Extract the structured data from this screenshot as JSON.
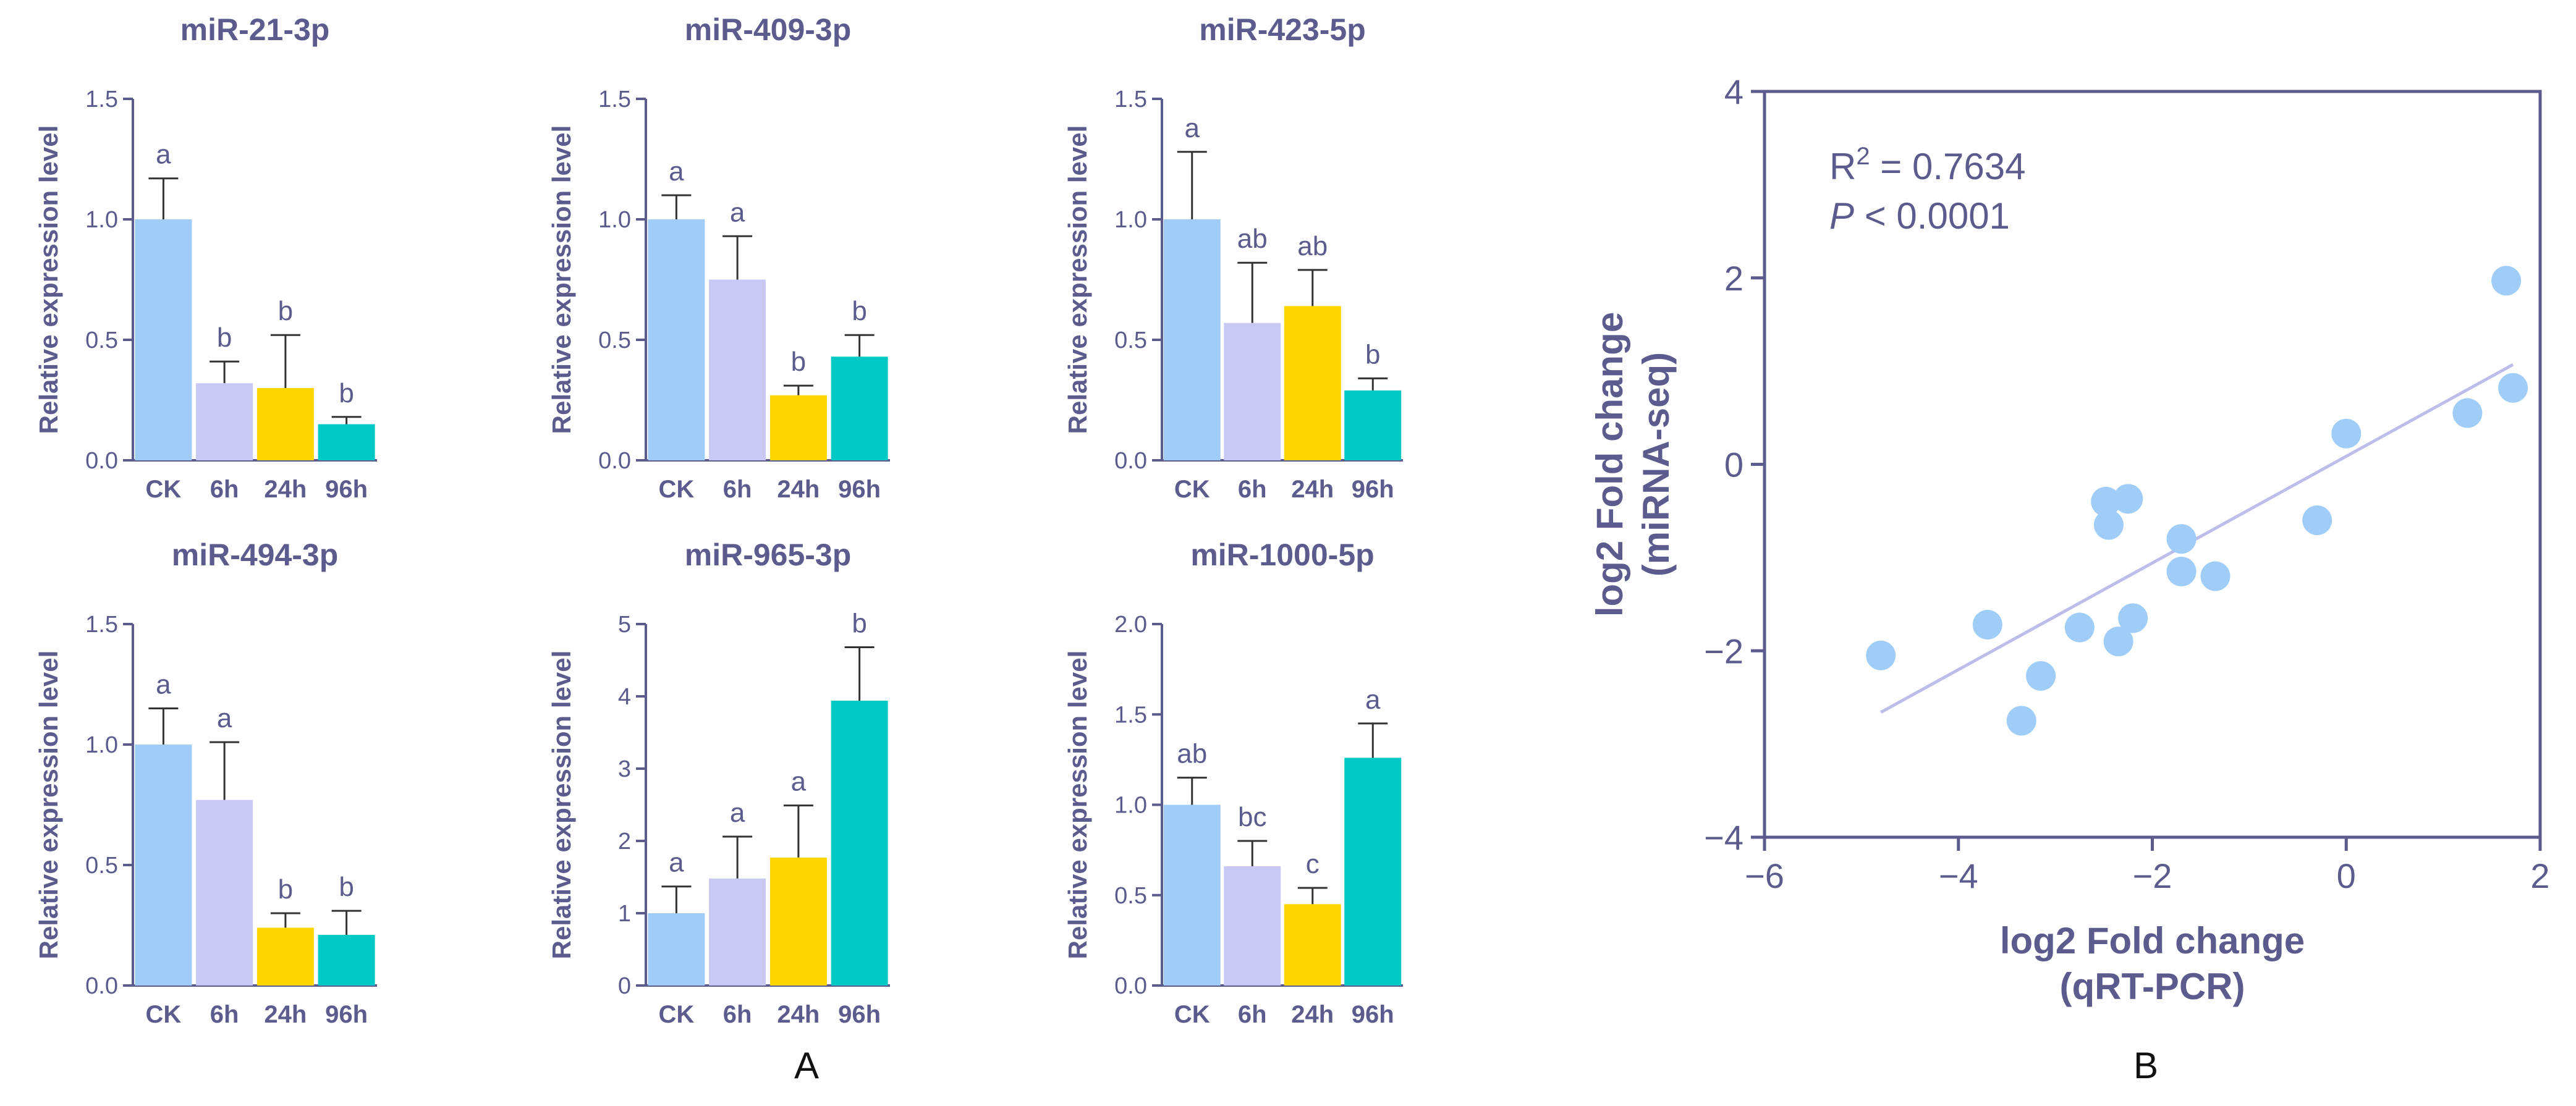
{
  "panel_labels": {
    "A": "A",
    "B": "B"
  },
  "colors": {
    "axis": "#5b5b8e",
    "bar_colors": [
      "#9fcdf7",
      "#c9c8f5",
      "#ffd700",
      "#00c8c4"
    ],
    "scatter_point": "#9fcdf7",
    "fit_line": "#bdbdec"
  },
  "chart_data": [
    {
      "type": "bar",
      "title": "miR-21-3p",
      "ylabel": "Relative expression level",
      "xlabel": "",
      "categories": [
        "CK",
        "6h",
        "24h",
        "96h"
      ],
      "values": [
        1.0,
        0.32,
        0.3,
        0.15
      ],
      "errors": [
        0.17,
        0.09,
        0.22,
        0.03
      ],
      "letters": [
        "a",
        "b",
        "b",
        "b"
      ],
      "ylim": [
        0,
        1.5
      ],
      "yticks": [
        0,
        0.5,
        1.0,
        1.5
      ],
      "ytick_labels": [
        "0.0",
        "0.5",
        "1.0",
        "1.5"
      ]
    },
    {
      "type": "bar",
      "title": "miR-409-3p",
      "ylabel": "Relative expression level",
      "xlabel": "",
      "categories": [
        "CK",
        "6h",
        "24h",
        "96h"
      ],
      "values": [
        1.0,
        0.75,
        0.27,
        0.43
      ],
      "errors": [
        0.1,
        0.18,
        0.04,
        0.09
      ],
      "letters": [
        "a",
        "a",
        "b",
        "b"
      ],
      "ylim": [
        0,
        1.5
      ],
      "yticks": [
        0,
        0.5,
        1.0,
        1.5
      ],
      "ytick_labels": [
        "0.0",
        "0.5",
        "1.0",
        "1.5"
      ]
    },
    {
      "type": "bar",
      "title": "miR-423-5p",
      "ylabel": "Relative expression level",
      "xlabel": "",
      "categories": [
        "CK",
        "6h",
        "24h",
        "96h"
      ],
      "values": [
        1.0,
        0.57,
        0.64,
        0.29
      ],
      "errors": [
        0.28,
        0.25,
        0.15,
        0.05
      ],
      "letters": [
        "a",
        "ab",
        "ab",
        "b"
      ],
      "ylim": [
        0,
        1.5
      ],
      "yticks": [
        0,
        0.5,
        1.0,
        1.5
      ],
      "ytick_labels": [
        "0.0",
        "0.5",
        "1.0",
        "1.5"
      ]
    },
    {
      "type": "bar",
      "title": "miR-494-3p",
      "ylabel": "Relative expression level",
      "xlabel": "",
      "categories": [
        "CK",
        "6h",
        "24h",
        "96h"
      ],
      "values": [
        1.0,
        0.77,
        0.24,
        0.21
      ],
      "errors": [
        0.15,
        0.24,
        0.06,
        0.1
      ],
      "letters": [
        "a",
        "a",
        "b",
        "b"
      ],
      "ylim": [
        0,
        1.5
      ],
      "yticks": [
        0,
        0.5,
        1.0,
        1.5
      ],
      "ytick_labels": [
        "0.0",
        "0.5",
        "1.0",
        "1.5"
      ]
    },
    {
      "type": "bar",
      "title": "miR-965-3p",
      "ylabel": "Relative expression level",
      "xlabel": "",
      "categories": [
        "CK",
        "6h",
        "24h",
        "96h"
      ],
      "values": [
        1.0,
        1.48,
        1.77,
        3.94
      ],
      "errors": [
        0.37,
        0.58,
        0.72,
        0.74
      ],
      "letters": [
        "a",
        "a",
        "a",
        "b"
      ],
      "ylim": [
        0,
        5
      ],
      "yticks": [
        0,
        1,
        2,
        3,
        4,
        5
      ],
      "ytick_labels": [
        "0",
        "1",
        "2",
        "3",
        "4",
        "5"
      ]
    },
    {
      "type": "bar",
      "title": "miR-1000-5p",
      "ylabel": "Relative expression level",
      "xlabel": "",
      "categories": [
        "CK",
        "6h",
        "24h",
        "96h"
      ],
      "values": [
        1.0,
        0.66,
        0.45,
        1.26
      ],
      "errors": [
        0.15,
        0.14,
        0.09,
        0.19
      ],
      "letters": [
        "ab",
        "bc",
        "c",
        "a"
      ],
      "ylim": [
        0,
        2.0
      ],
      "yticks": [
        0,
        0.5,
        1.0,
        1.5,
        2.0
      ],
      "ytick_labels": [
        "0.0",
        "0.5",
        "1.0",
        "1.5",
        "2.0"
      ]
    },
    {
      "type": "scatter",
      "title": "",
      "xlabel": [
        "log2 Fold change",
        "(qRT-PCR)"
      ],
      "ylabel": [
        "log2 Fold change",
        "(miRNA-seq)"
      ],
      "xlim": [
        -6,
        2
      ],
      "ylim": [
        -4,
        4
      ],
      "xticks": [
        -6,
        -4,
        -2,
        0,
        2
      ],
      "xtick_labels": [
        "−6",
        "−4",
        "−2",
        "0",
        "2"
      ],
      "yticks": [
        -4,
        -2,
        0,
        2,
        4
      ],
      "ytick_labels": [
        "−4",
        "−2",
        "0",
        "2",
        "4"
      ],
      "points": [
        {
          "x": -4.8,
          "y": -2.05
        },
        {
          "x": -3.7,
          "y": -1.72
        },
        {
          "x": -3.35,
          "y": -2.75
        },
        {
          "x": -3.15,
          "y": -2.27
        },
        {
          "x": -2.75,
          "y": -1.75
        },
        {
          "x": -2.48,
          "y": -0.4
        },
        {
          "x": -2.45,
          "y": -0.65
        },
        {
          "x": -2.35,
          "y": -1.9
        },
        {
          "x": -2.25,
          "y": -0.37
        },
        {
          "x": -2.2,
          "y": -1.65
        },
        {
          "x": -1.7,
          "y": -0.8
        },
        {
          "x": -1.7,
          "y": -1.15
        },
        {
          "x": -1.35,
          "y": -1.2
        },
        {
          "x": -0.3,
          "y": -0.6
        },
        {
          "x": 0.0,
          "y": 0.33
        },
        {
          "x": 1.25,
          "y": 0.55
        },
        {
          "x": 1.65,
          "y": 1.97
        },
        {
          "x": 1.72,
          "y": 0.82
        }
      ],
      "fit_line": {
        "x": [
          -4.8,
          1.72
        ],
        "y": [
          -2.66,
          1.07
        ]
      },
      "annotation_r2": {
        "prefix": "R",
        "sup": "2",
        "value": " = 0.7634"
      },
      "annotation_p": {
        "label": "P",
        "value": " < 0.0001"
      }
    }
  ]
}
